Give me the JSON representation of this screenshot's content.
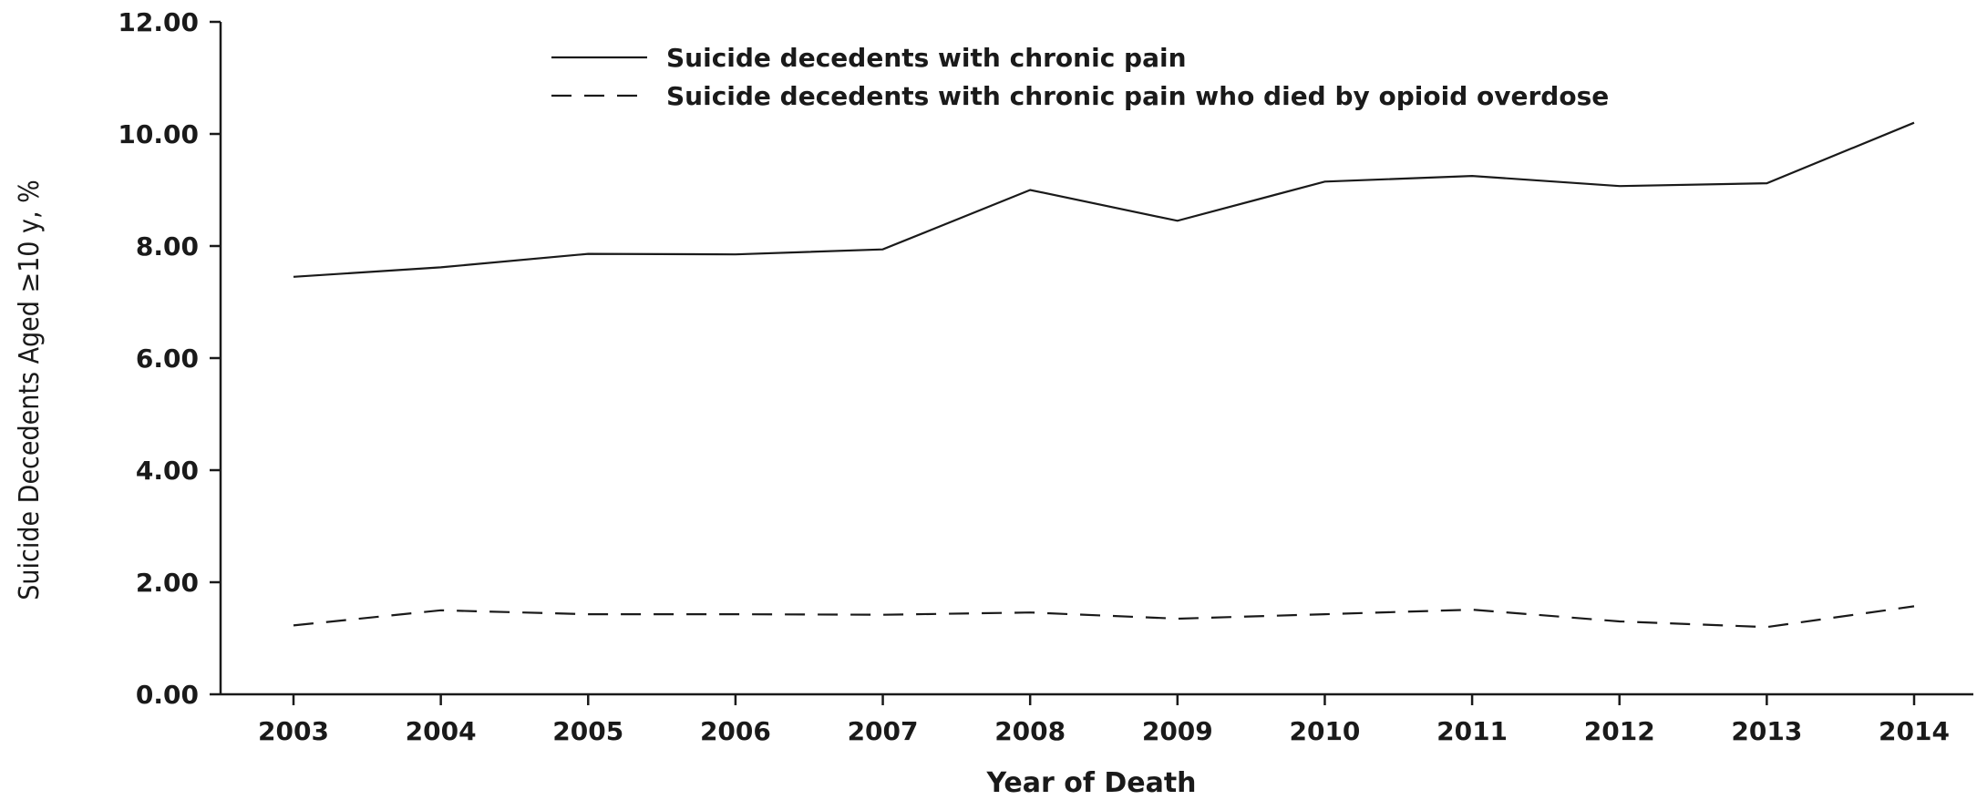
{
  "chart_data": {
    "type": "line",
    "title": "",
    "xlabel": "Year of Death",
    "ylabel": "Suicide Decedents Aged ≥10 y, %",
    "categories": [
      "2003",
      "2004",
      "2005",
      "2006",
      "2007",
      "2008",
      "2009",
      "2010",
      "2011",
      "2012",
      "2013",
      "2014"
    ],
    "ylim": [
      0,
      12
    ],
    "yticks": [
      "0.00",
      "2.00",
      "4.00",
      "6.00",
      "8.00",
      "10.00",
      "12.00"
    ],
    "grid": false,
    "legend_position": "top-center",
    "series": [
      {
        "name": "Suicide decedents with chronic pain",
        "style": "solid",
        "color": "#1a1a1a",
        "values": [
          7.45,
          7.62,
          7.86,
          7.85,
          7.94,
          9.0,
          8.45,
          9.15,
          9.25,
          9.07,
          9.12,
          10.2
        ]
      },
      {
        "name": "Suicide decedents with chronic pain who died by opioid overdose",
        "style": "dashed",
        "color": "#1a1a1a",
        "values": [
          1.23,
          1.5,
          1.43,
          1.43,
          1.42,
          1.46,
          1.35,
          1.43,
          1.51,
          1.3,
          1.2,
          1.57
        ]
      }
    ]
  }
}
